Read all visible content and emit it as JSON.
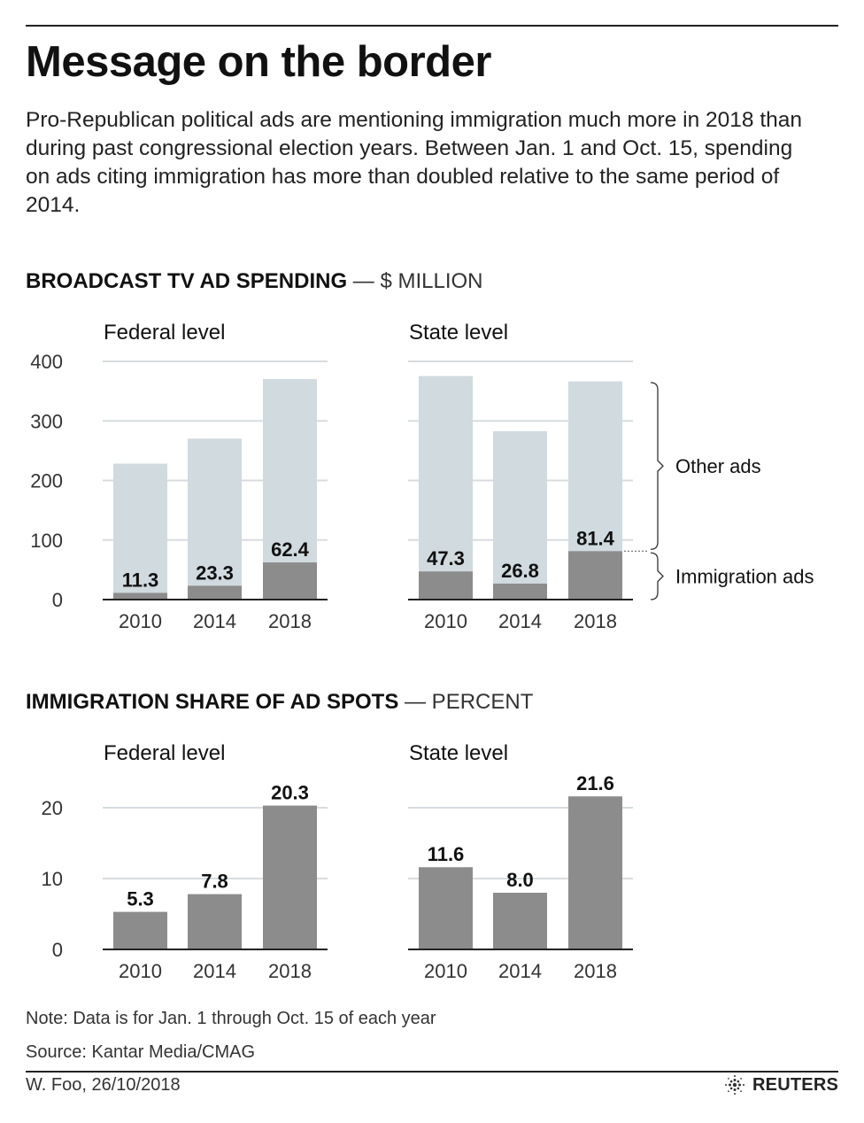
{
  "header": {
    "title": "Message on the border",
    "subtitle": "Pro-Republican political ads are mentioning immigration much more in 2018 than during past congressional election years. Between Jan. 1 and Oct. 15, spending on ads citing immigration has more than doubled relative to the same period of 2014."
  },
  "section1": {
    "heading": "BROADCAST TV AD SPENDING",
    "unit": " — $ MILLION"
  },
  "section2": {
    "heading": "IMMIGRATION SHARE OF AD SPOTS",
    "unit": " — PERCENT"
  },
  "legend": {
    "other": "Other ads",
    "immigration": "Immigration ads"
  },
  "colors": {
    "other": "#d0dadf",
    "immigration": "#8c8c8d",
    "share": "#8c8c8d",
    "grid": "#d7dcdf",
    "axis": "#222222"
  },
  "chart_data": [
    {
      "type": "bar",
      "stacked": true,
      "title": "Federal level",
      "categories": [
        "2010",
        "2014",
        "2018"
      ],
      "series": [
        {
          "name": "Immigration ads",
          "values": [
            11.3,
            23.3,
            62.4
          ]
        },
        {
          "name": "Other ads",
          "values": [
            217,
            247,
            308
          ]
        }
      ],
      "labels": [
        "11.3",
        "23.3",
        "62.4"
      ],
      "ylim": [
        0,
        400
      ],
      "yticks": [
        0,
        100,
        200,
        300,
        400
      ],
      "grid": true
    },
    {
      "type": "bar",
      "stacked": true,
      "title": "State level",
      "categories": [
        "2010",
        "2014",
        "2018"
      ],
      "series": [
        {
          "name": "Immigration ads",
          "values": [
            47.3,
            26.8,
            81.4
          ]
        },
        {
          "name": "Other ads",
          "values": [
            328,
            256,
            285
          ]
        }
      ],
      "labels": [
        "47.3",
        "26.8",
        "81.4"
      ],
      "ylim": [
        0,
        400
      ],
      "yticks": [
        0,
        100,
        200,
        300,
        400
      ],
      "grid": true
    },
    {
      "type": "bar",
      "title": "Federal level",
      "categories": [
        "2010",
        "2014",
        "2018"
      ],
      "values": [
        5.3,
        7.8,
        20.3
      ],
      "labels": [
        "5.3",
        "7.8",
        "20.3"
      ],
      "ylim": [
        0,
        25
      ],
      "yticks": [
        0,
        10,
        20
      ],
      "grid": true
    },
    {
      "type": "bar",
      "title": "State level",
      "categories": [
        "2010",
        "2014",
        "2018"
      ],
      "values": [
        11.6,
        8.0,
        21.6
      ],
      "labels": [
        "11.6",
        "8.0",
        "21.6"
      ],
      "ylim": [
        0,
        25
      ],
      "yticks": [
        0,
        10,
        20
      ],
      "grid": true
    }
  ],
  "footer": {
    "note": "Note: Data is for Jan. 1 through Oct. 15 of each year",
    "source": "Source: Kantar Media/CMAG",
    "credit": "W. Foo, 26/10/2018",
    "logo": "REUTERS"
  }
}
